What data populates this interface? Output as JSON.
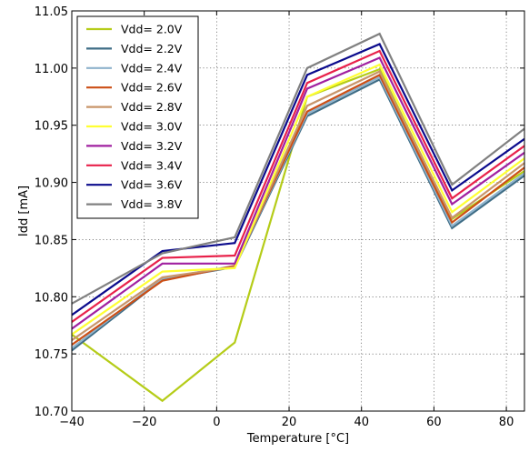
{
  "chart_data": {
    "type": "line",
    "title": "",
    "xlabel": "Temperature [°C]",
    "ylabel": "Idd [mA]",
    "xlim": [
      -40,
      85
    ],
    "ylim": [
      10.7,
      11.05
    ],
    "x": [
      -40,
      -15,
      5,
      25,
      45,
      65,
      85
    ],
    "xticks": [
      -40,
      -20,
      0,
      20,
      40,
      60,
      80
    ],
    "xtick_labels": [
      "−40",
      "−20",
      "0",
      "20",
      "40",
      "60",
      "80"
    ],
    "yticks": [
      10.7,
      10.75,
      10.8,
      10.85,
      10.9,
      10.95,
      11.0,
      11.05
    ],
    "ytick_labels": [
      "10.70",
      "10.75",
      "10.80",
      "10.85",
      "10.90",
      "10.95",
      "11.00",
      "11.05"
    ],
    "grid": true,
    "legend_position": "top-left",
    "series": [
      {
        "name": "Vdd= 2.0V",
        "color": "#b5cc18",
        "values": [
          10.767,
          10.709,
          10.76,
          10.975,
          10.999,
          10.868,
          10.91
        ]
      },
      {
        "name": "Vdd= 2.2V",
        "color": "#3f6d86",
        "values": [
          10.753,
          10.815,
          10.826,
          10.958,
          10.99,
          10.86,
          10.906
        ]
      },
      {
        "name": "Vdd= 2.4V",
        "color": "#8fb3cc",
        "values": [
          10.755,
          10.816,
          10.827,
          10.96,
          10.992,
          10.862,
          10.908
        ]
      },
      {
        "name": "Vdd= 2.6V",
        "color": "#cc4f16",
        "values": [
          10.758,
          10.814,
          10.827,
          10.962,
          10.994,
          10.865,
          10.913
        ]
      },
      {
        "name": "Vdd= 2.8V",
        "color": "#c8956a",
        "values": [
          10.762,
          10.817,
          10.826,
          10.967,
          10.997,
          10.869,
          10.917
        ]
      },
      {
        "name": "Vdd= 3.0V",
        "color": "#ffff33",
        "values": [
          10.767,
          10.822,
          10.825,
          10.975,
          11.003,
          10.874,
          10.921
        ]
      },
      {
        "name": "Vdd= 3.2V",
        "color": "#a020a0",
        "values": [
          10.772,
          10.829,
          10.829,
          10.982,
          11.009,
          10.881,
          10.926
        ]
      },
      {
        "name": "Vdd= 3.4V",
        "color": "#e8214a",
        "values": [
          10.778,
          10.834,
          10.836,
          10.987,
          11.015,
          10.886,
          10.932
        ]
      },
      {
        "name": "Vdd= 3.6V",
        "color": "#0a0a8c",
        "values": [
          10.784,
          10.84,
          10.847,
          10.994,
          11.021,
          10.893,
          10.938
        ]
      },
      {
        "name": "Vdd= 3.8V",
        "color": "#808080",
        "values": [
          10.794,
          10.838,
          10.852,
          11.0,
          11.03,
          10.898,
          10.947
        ]
      }
    ]
  }
}
